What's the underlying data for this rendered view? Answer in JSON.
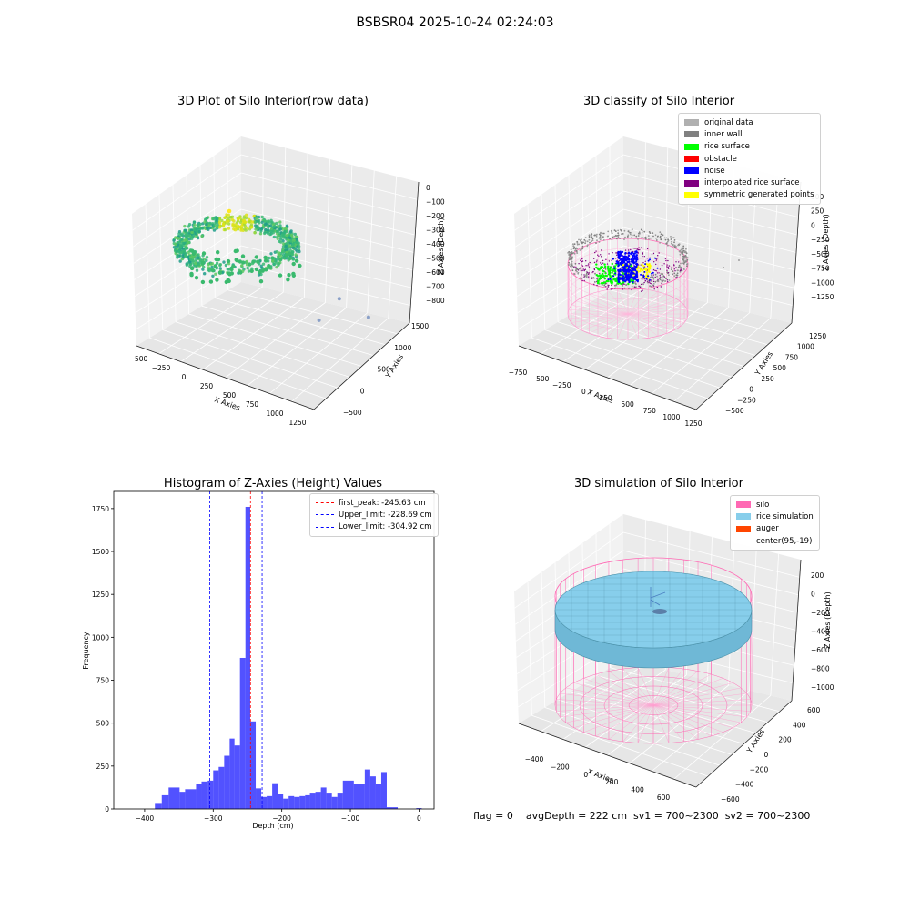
{
  "figure": {
    "title": "BSBSR04 2025-10-24 02:24:03",
    "footer": "flag = 0    avgDepth = 222 cm  sv1 = 700~2300  sv2 = 700~2300"
  },
  "chart_data": [
    {
      "type": "scatter",
      "title": "3D Plot of Silo Interior(row data)",
      "xlabel": "X Axies",
      "ylabel": "Y Axies",
      "zlabel": "Z Axies (Depth)",
      "x_ticks": [
        "−500",
        "−250",
        "0",
        "250",
        "500",
        "750",
        "1000",
        "1250"
      ],
      "y_ticks": [
        "−500",
        "0",
        "500",
        "1000",
        "1500"
      ],
      "z_ticks": [
        "0",
        "−100",
        "−200",
        "−300",
        "−400",
        "−500",
        "−600",
        "−700",
        "−800"
      ],
      "xlim": [
        -600,
        1300
      ],
      "ylim": [
        -600,
        1600
      ],
      "zlim": [
        -850,
        50
      ],
      "colormap": "viridis",
      "outliers": [
        {
          "x": 1000,
          "y": 1300,
          "z": -800
        },
        {
          "x": 850,
          "y": 950,
          "z": -620
        },
        {
          "x": 750,
          "y": 700,
          "z": -720
        }
      ]
    },
    {
      "type": "scatter",
      "title": "3D classify of Silo Interior",
      "xlabel": "X Axies",
      "ylabel": "Y Axies",
      "zlabel": "Z Axies (Depth)",
      "x_ticks": [
        "−750",
        "−500",
        "−250",
        "0",
        "250",
        "500",
        "750",
        "1000",
        "1250"
      ],
      "y_ticks": [
        "−500",
        "−250",
        "0",
        "250",
        "500",
        "750",
        "1000",
        "1250"
      ],
      "z_ticks": [
        "500",
        "250",
        "0",
        "−250",
        "−500",
        "−750",
        "−1000",
        "−1250"
      ],
      "legend": [
        {
          "label": "original data",
          "color": "#b0b0b0"
        },
        {
          "label": "inner wall",
          "color": "#808080"
        },
        {
          "label": "rice surface",
          "color": "#00ff00"
        },
        {
          "label": "obstacle",
          "color": "#ff0000"
        },
        {
          "label": "noise",
          "color": "#0000ff"
        },
        {
          "label": "interpolated rice surface",
          "color": "#800080"
        },
        {
          "label": "symmetric generated points",
          "color": "#ffff00"
        }
      ]
    },
    {
      "type": "bar",
      "title": "Histogram of Z-Axies (Height) Values",
      "xlabel": "Depth (cm)",
      "ylabel": "Frequency",
      "xlim": [
        -445,
        22
      ],
      "ylim": [
        0,
        1850
      ],
      "x_ticks": [
        -400,
        -300,
        -200,
        -100,
        0
      ],
      "y_ticks": [
        0,
        250,
        500,
        750,
        1000,
        1250,
        1500,
        1750
      ],
      "bar_color": "#0000ff",
      "bins": [
        {
          "x0": -385,
          "x1": -375,
          "value": 35
        },
        {
          "x0": -375,
          "x1": -365,
          "value": 80
        },
        {
          "x0": -365,
          "x1": -349,
          "value": 125
        },
        {
          "x0": -349,
          "x1": -341,
          "value": 100
        },
        {
          "x0": -341,
          "x1": -325,
          "value": 115
        },
        {
          "x0": -325,
          "x1": -317,
          "value": 145
        },
        {
          "x0": -317,
          "x1": -308,
          "value": 160
        },
        {
          "x0": -308,
          "x1": -300,
          "value": 165
        },
        {
          "x0": -300,
          "x1": -292,
          "value": 225
        },
        {
          "x0": -292,
          "x1": -284,
          "value": 245
        },
        {
          "x0": -284,
          "x1": -276,
          "value": 310
        },
        {
          "x0": -276,
          "x1": -269,
          "value": 410
        },
        {
          "x0": -269,
          "x1": -261,
          "value": 370
        },
        {
          "x0": -261,
          "x1": -253,
          "value": 880
        },
        {
          "x0": -253,
          "x1": -246,
          "value": 1760
        },
        {
          "x0": -246,
          "x1": -238,
          "value": 510
        },
        {
          "x0": -238,
          "x1": -230,
          "value": 120
        },
        {
          "x0": -230,
          "x1": -222,
          "value": 70
        },
        {
          "x0": -222,
          "x1": -214,
          "value": 75
        },
        {
          "x0": -214,
          "x1": -206,
          "value": 150
        },
        {
          "x0": -206,
          "x1": -198,
          "value": 90
        },
        {
          "x0": -198,
          "x1": -190,
          "value": 60
        },
        {
          "x0": -190,
          "x1": -182,
          "value": 75
        },
        {
          "x0": -182,
          "x1": -174,
          "value": 70
        },
        {
          "x0": -174,
          "x1": -166,
          "value": 75
        },
        {
          "x0": -166,
          "x1": -159,
          "value": 80
        },
        {
          "x0": -159,
          "x1": -151,
          "value": 95
        },
        {
          "x0": -151,
          "x1": -143,
          "value": 100
        },
        {
          "x0": -143,
          "x1": -135,
          "value": 125
        },
        {
          "x0": -135,
          "x1": -127,
          "value": 95
        },
        {
          "x0": -127,
          "x1": -119,
          "value": 70
        },
        {
          "x0": -119,
          "x1": -111,
          "value": 95
        },
        {
          "x0": -111,
          "x1": -95,
          "value": 165
        },
        {
          "x0": -95,
          "x1": -79,
          "value": 145
        },
        {
          "x0": -79,
          "x1": -71,
          "value": 230
        },
        {
          "x0": -71,
          "x1": -63,
          "value": 190
        },
        {
          "x0": -63,
          "x1": -55,
          "value": 145
        },
        {
          "x0": -55,
          "x1": -47,
          "value": 215
        },
        {
          "x0": -47,
          "x1": -39,
          "value": 10
        },
        {
          "x0": -39,
          "x1": -31,
          "value": 10
        },
        {
          "x0": -4,
          "x1": 4,
          "value": 5
        }
      ],
      "vlines": [
        {
          "label": "first_peak: -245.63 cm",
          "x": -245.63,
          "color": "#ff0000"
        },
        {
          "label": "Upper_limit: -228.69 cm",
          "x": -228.69,
          "color": "#0000ff"
        },
        {
          "label": "Lower_limit: -304.92 cm",
          "x": -304.92,
          "color": "#0000ff"
        }
      ]
    },
    {
      "type": "scatter",
      "title": "3D simulation of Silo Interior",
      "xlabel": "X Axies",
      "ylabel": "Y Axies",
      "zlabel": "Z Axies (Depth)",
      "x_ticks": [
        "−400",
        "−200",
        "0",
        "200",
        "400",
        "600"
      ],
      "y_ticks": [
        "−600",
        "−400",
        "−200",
        "0",
        "200",
        "400",
        "600"
      ],
      "z_ticks": [
        "200",
        "0",
        "−200",
        "−400",
        "−600",
        "−800",
        "−1000"
      ],
      "legend": [
        {
          "label": "silo",
          "color": "#ff69b4"
        },
        {
          "label": "rice simulation",
          "color": "#87ceeb"
        },
        {
          "label": "auger",
          "color": "#ff4500"
        },
        {
          "label": "center(95,-19)",
          "color": "none"
        }
      ]
    }
  ]
}
